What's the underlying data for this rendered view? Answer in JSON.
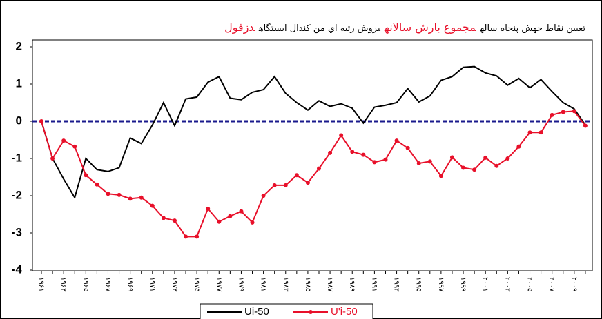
{
  "chart_data": {
    "type": "line",
    "title_parts": [
      {
        "text": "تعیین نقاط جهش پنجاه ساله",
        "color": "#000000"
      },
      {
        "text": "مجموع بارش سالانه",
        "color": "#e8102a"
      },
      {
        "text": "بروش رتبه اي من كندال ايستگاه",
        "color": "#000000"
      },
      {
        "text": "دزفول",
        "color": "#e8102a"
      }
    ],
    "categories": [
      "۱۹۶۱",
      null,
      "۱۹۶۳",
      null,
      "۱۹۶۵",
      null,
      "۱۹۶۷",
      null,
      "۱۹۶۹",
      null,
      "۱۹۷۱",
      null,
      "۱۹۷۳",
      null,
      "۱۹۷۵",
      null,
      "۱۹۷۷",
      null,
      "۱۹۷۹",
      null,
      "۱۹۸۱",
      null,
      "۱۹۸۳",
      null,
      "۱۹۸۵",
      null,
      "۱۹۸۷",
      null,
      "۱۹۸۹",
      null,
      "۱۹۹۱",
      null,
      "۱۹۹۳",
      null,
      "۱۹۹۵",
      null,
      "۱۹۹۷",
      null,
      "۱۹۹۹",
      null,
      "۲۰۰۱",
      null,
      "۲۰۰۳",
      null,
      "۲۰۰۵",
      null,
      "۲۰۰۷",
      null,
      "۲۰۰۹",
      null
    ],
    "series": [
      {
        "name": "Ui-50",
        "color": "#000000",
        "marker": false,
        "values": [
          0,
          -1.0,
          -1.55,
          -2.05,
          -1.0,
          -1.3,
          -1.35,
          -1.25,
          -0.45,
          -0.6,
          -0.1,
          0.5,
          -0.12,
          0.6,
          0.65,
          1.05,
          1.2,
          0.62,
          0.58,
          0.78,
          0.85,
          1.2,
          0.75,
          0.5,
          0.3,
          0.55,
          0.4,
          0.47,
          0.35,
          -0.05,
          0.38,
          0.43,
          0.5,
          0.88,
          0.52,
          0.68,
          1.1,
          1.2,
          1.45,
          1.47,
          1.3,
          1.22,
          0.97,
          1.15,
          0.9,
          1.12,
          0.8,
          0.5,
          0.33,
          -0.1
        ]
      },
      {
        "name": "U'i-50",
        "color": "#e8102a",
        "marker": true,
        "values": [
          0,
          -1.0,
          -0.52,
          -0.68,
          -1.45,
          -1.7,
          -1.95,
          -1.98,
          -2.08,
          -2.05,
          -2.27,
          -2.6,
          -2.67,
          -3.1,
          -3.1,
          -2.35,
          -2.7,
          -2.55,
          -2.42,
          -2.72,
          -2.0,
          -1.72,
          -1.72,
          -1.45,
          -1.65,
          -1.27,
          -0.85,
          -0.38,
          -0.82,
          -0.9,
          -1.1,
          -1.03,
          -0.52,
          -0.72,
          -1.13,
          -1.08,
          -1.47,
          -0.97,
          -1.25,
          -1.3,
          -0.98,
          -1.2,
          -1.0,
          -0.68,
          -0.3,
          -0.3,
          0.17,
          0.25,
          0.27,
          -0.12
        ]
      }
    ],
    "ylim": [
      -4,
      2
    ],
    "yticks": [
      -4,
      -3,
      -2,
      -1,
      0,
      1,
      2
    ],
    "zero_line_color": "#1a1a8c"
  }
}
